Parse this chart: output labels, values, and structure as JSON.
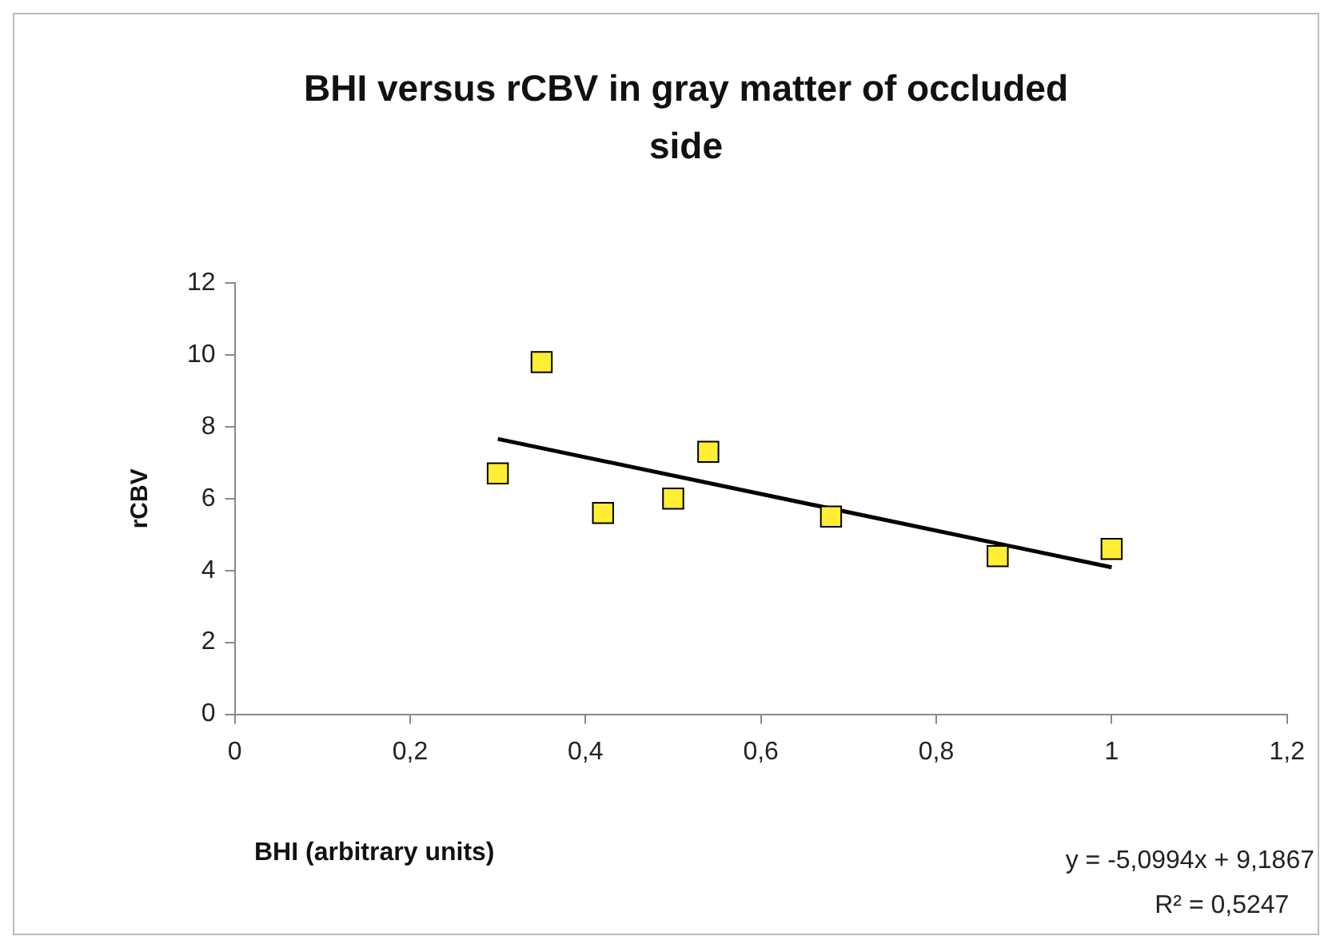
{
  "chart_data": {
    "type": "scatter",
    "title": "BHI versus rCBV in gray matter of occluded side",
    "xlabel": "BHI (arbitrary units)",
    "ylabel": "rCBV",
    "series": [
      {
        "type": "scatter",
        "marker": "square",
        "color": "#ffee33",
        "x": [
          0.3,
          0.35,
          0.42,
          0.5,
          0.54,
          0.68,
          0.87,
          1.0
        ],
        "values": [
          6.7,
          9.8,
          5.6,
          6.0,
          7.3,
          5.5,
          4.4,
          4.6
        ]
      },
      {
        "type": "line",
        "marker": "none",
        "color": "#000000",
        "x": [
          0.3,
          1.0
        ],
        "values": [
          7.66,
          4.09
        ]
      }
    ],
    "xlim": [
      0,
      1.2
    ],
    "xticks": [
      0,
      {
        "value": 0.2,
        "label": "0,2"
      },
      {
        "value": 0.4,
        "label": "0,4"
      },
      {
        "value": 0.6,
        "label": "0,6"
      },
      {
        "value": 0.8,
        "label": "0,8"
      },
      1,
      {
        "value": 1.2,
        "label": "1,2"
      }
    ],
    "ylim": [
      0,
      12
    ],
    "yticks": [
      0,
      2,
      4,
      6,
      8,
      10,
      12
    ],
    "annotations": [
      "y = -5,0994x + 9,1867",
      "R² = 0,5247"
    ],
    "grid": false,
    "legend": false
  }
}
